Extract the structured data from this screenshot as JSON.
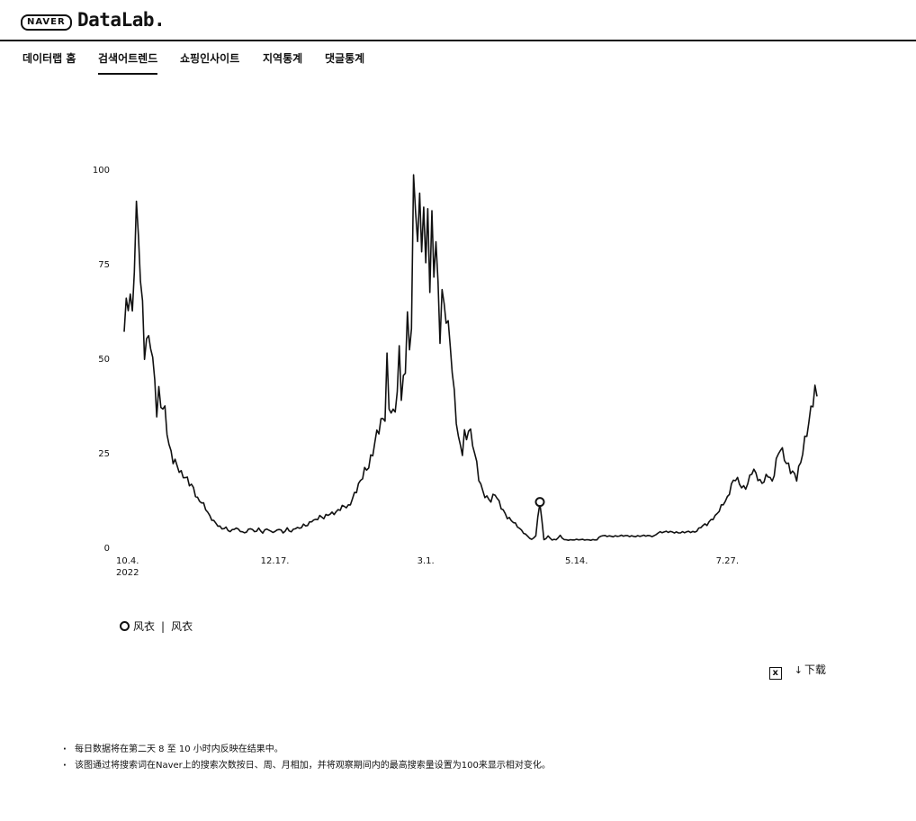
{
  "header": {
    "brand": "NAVER",
    "product": "DataLab."
  },
  "nav": {
    "tabs": [
      {
        "label": "데이터랩 홈",
        "active": false
      },
      {
        "label": "검색어트렌드",
        "active": true
      },
      {
        "label": "쇼핑인사이트",
        "active": false
      },
      {
        "label": "지역통계",
        "active": false
      },
      {
        "label": "댓글통계",
        "active": false
      }
    ]
  },
  "chart_data": {
    "type": "line",
    "ylim": [
      0,
      100
    ],
    "y_ticks": [
      0,
      25,
      50,
      75,
      100
    ],
    "x_ticks": [
      {
        "label": "10.4.",
        "sublabel": "2022",
        "index": 0
      },
      {
        "label": "12.17.",
        "index": 74
      },
      {
        "label": "3.1.",
        "index": 148
      },
      {
        "label": "5.14.",
        "index": 222
      },
      {
        "label": "7.27.",
        "index": 296
      }
    ],
    "grid": false,
    "line_color": "#111111",
    "highlight": {
      "index": 204,
      "value": 12
    },
    "series": [
      {
        "name": "风衣",
        "anchors": [
          [
            0,
            57
          ],
          [
            1,
            65
          ],
          [
            3,
            67
          ],
          [
            4,
            63
          ],
          [
            5,
            75
          ],
          [
            6,
            89
          ],
          [
            7,
            82
          ],
          [
            8,
            70
          ],
          [
            9,
            62
          ],
          [
            10,
            51
          ],
          [
            11,
            55
          ],
          [
            13,
            56
          ],
          [
            14,
            50
          ],
          [
            15,
            45
          ],
          [
            16,
            36
          ],
          [
            17,
            40
          ],
          [
            18,
            37
          ],
          [
            20,
            35
          ],
          [
            22,
            27
          ],
          [
            24,
            24
          ],
          [
            26,
            22
          ],
          [
            28,
            19
          ],
          [
            30,
            18
          ],
          [
            32,
            17
          ],
          [
            34,
            16
          ],
          [
            36,
            13
          ],
          [
            38,
            12
          ],
          [
            40,
            10
          ],
          [
            42,
            8
          ],
          [
            44,
            7
          ],
          [
            46,
            6
          ],
          [
            48,
            5
          ],
          [
            50,
            5
          ],
          [
            52,
            4
          ],
          [
            54,
            5
          ],
          [
            56,
            5
          ],
          [
            58,
            4
          ],
          [
            60,
            4
          ],
          [
            62,
            5
          ],
          [
            64,
            4
          ],
          [
            66,
            5
          ],
          [
            68,
            4
          ],
          [
            70,
            5
          ],
          [
            72,
            4
          ],
          [
            74,
            4
          ],
          [
            76,
            5
          ],
          [
            78,
            4
          ],
          [
            80,
            5
          ],
          [
            82,
            4
          ],
          [
            84,
            5
          ],
          [
            86,
            5
          ],
          [
            88,
            6
          ],
          [
            90,
            6
          ],
          [
            92,
            7
          ],
          [
            94,
            7
          ],
          [
            96,
            8
          ],
          [
            98,
            8
          ],
          [
            100,
            9
          ],
          [
            102,
            9
          ],
          [
            104,
            9
          ],
          [
            106,
            10
          ],
          [
            108,
            11
          ],
          [
            110,
            11
          ],
          [
            112,
            13
          ],
          [
            114,
            15
          ],
          [
            116,
            17
          ],
          [
            118,
            20
          ],
          [
            120,
            22
          ],
          [
            122,
            26
          ],
          [
            124,
            30
          ],
          [
            126,
            32
          ],
          [
            128,
            34
          ],
          [
            129,
            49
          ],
          [
            130,
            38
          ],
          [
            132,
            36
          ],
          [
            134,
            41
          ],
          [
            135,
            52
          ],
          [
            136,
            40
          ],
          [
            138,
            45
          ],
          [
            139,
            63
          ],
          [
            140,
            50
          ],
          [
            141,
            60
          ],
          [
            142,
            100
          ],
          [
            143,
            88
          ],
          [
            144,
            84
          ],
          [
            145,
            93
          ],
          [
            146,
            77
          ],
          [
            147,
            91
          ],
          [
            148,
            72
          ],
          [
            149,
            89
          ],
          [
            150,
            68
          ],
          [
            151,
            87
          ],
          [
            152,
            74
          ],
          [
            153,
            82
          ],
          [
            154,
            70
          ],
          [
            155,
            57
          ],
          [
            156,
            67
          ],
          [
            158,
            60
          ],
          [
            160,
            53
          ],
          [
            162,
            40
          ],
          [
            164,
            30
          ],
          [
            165,
            27
          ],
          [
            166,
            26
          ],
          [
            167,
            30
          ],
          [
            168,
            28
          ],
          [
            169,
            31
          ],
          [
            170,
            29
          ],
          [
            172,
            25
          ],
          [
            174,
            19
          ],
          [
            176,
            15
          ],
          [
            178,
            13
          ],
          [
            180,
            12
          ],
          [
            182,
            14
          ],
          [
            184,
            12
          ],
          [
            186,
            10
          ],
          [
            188,
            8
          ],
          [
            190,
            7
          ],
          [
            192,
            6
          ],
          [
            194,
            5
          ],
          [
            196,
            4
          ],
          [
            198,
            3
          ],
          [
            200,
            2
          ],
          [
            202,
            3
          ],
          [
            204,
            12
          ],
          [
            206,
            2
          ],
          [
            208,
            3
          ],
          [
            210,
            2
          ],
          [
            212,
            2
          ],
          [
            214,
            3
          ],
          [
            216,
            2
          ],
          [
            218,
            2
          ],
          [
            220,
            2
          ],
          [
            222,
            2
          ],
          [
            224,
            2
          ],
          [
            226,
            2
          ],
          [
            228,
            2
          ],
          [
            230,
            2
          ],
          [
            232,
            2
          ],
          [
            234,
            3
          ],
          [
            236,
            3
          ],
          [
            238,
            3
          ],
          [
            240,
            3
          ],
          [
            242,
            3
          ],
          [
            244,
            3
          ],
          [
            246,
            3
          ],
          [
            248,
            3
          ],
          [
            250,
            3
          ],
          [
            252,
            3
          ],
          [
            254,
            3
          ],
          [
            256,
            3
          ],
          [
            258,
            3
          ],
          [
            260,
            3
          ],
          [
            262,
            4
          ],
          [
            264,
            4
          ],
          [
            266,
            4
          ],
          [
            268,
            4
          ],
          [
            270,
            4
          ],
          [
            272,
            4
          ],
          [
            274,
            4
          ],
          [
            276,
            4
          ],
          [
            278,
            4
          ],
          [
            280,
            4
          ],
          [
            282,
            5
          ],
          [
            284,
            6
          ],
          [
            286,
            6
          ],
          [
            288,
            7
          ],
          [
            290,
            8
          ],
          [
            292,
            10
          ],
          [
            294,
            12
          ],
          [
            296,
            13
          ],
          [
            298,
            16
          ],
          [
            300,
            18
          ],
          [
            302,
            17
          ],
          [
            304,
            16
          ],
          [
            306,
            17
          ],
          [
            308,
            20
          ],
          [
            310,
            19
          ],
          [
            312,
            17
          ],
          [
            314,
            18
          ],
          [
            316,
            20
          ],
          [
            318,
            17
          ],
          [
            320,
            22
          ],
          [
            322,
            26
          ],
          [
            324,
            24
          ],
          [
            326,
            22
          ],
          [
            328,
            20
          ],
          [
            330,
            18
          ],
          [
            332,
            22
          ],
          [
            334,
            28
          ],
          [
            336,
            34
          ],
          [
            338,
            40
          ],
          [
            339,
            42
          ],
          [
            340,
            39
          ]
        ],
        "start": [
          4,
          2,
          1,
          2,
          3,
          1
        ],
        "end": [
          5,
          6,
          5,
          7,
          4
        ]
      }
    ]
  },
  "legend": {
    "items": [
      "风衣",
      "风衣"
    ],
    "separator": "|"
  },
  "tools": {
    "excel_icon": "x",
    "download_label": "下载",
    "download_icon": "↓"
  },
  "notes": [
    "每日数据将在第二天 8 至 10 小时内反映在结果中。",
    "该图通过将搜索词在Naver上的搜索次数按日、周、月相加，并将观察期间内的最高搜索量设置为100来显示相对变化。"
  ]
}
